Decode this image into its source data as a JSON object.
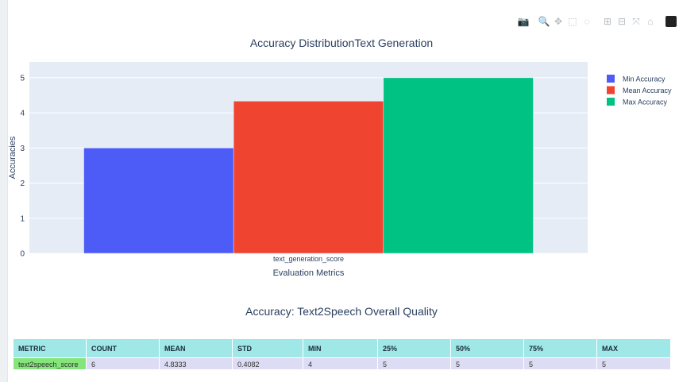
{
  "modebar": {
    "buttons": [
      {
        "name": "camera-icon",
        "glyph": "📷"
      },
      {
        "name": "zoom-icon",
        "glyph": "🔍"
      },
      {
        "name": "pan-icon",
        "glyph": "✥"
      },
      {
        "name": "box-select-icon",
        "glyph": "⬚"
      },
      {
        "name": "lasso-select-icon",
        "glyph": "◌"
      },
      {
        "name": "zoom-in-icon",
        "glyph": "⊞"
      },
      {
        "name": "zoom-out-icon",
        "glyph": "⊟"
      },
      {
        "name": "autoscale-icon",
        "glyph": "⤧"
      },
      {
        "name": "reset-axes-icon",
        "glyph": "⌂"
      },
      {
        "name": "plotly-logo-icon",
        "glyph": "▮"
      }
    ]
  },
  "chart_data": {
    "type": "bar",
    "title": "Accuracy DistributionText Generation",
    "xlabel": "Evaluation Metrics",
    "ylabel": "Accuracies",
    "categories": [
      "text_generation_score"
    ],
    "ylim": [
      0,
      5.45
    ],
    "yticks": [
      0,
      1,
      2,
      3,
      4,
      5
    ],
    "grid": true,
    "legend_position": "top-right",
    "series": [
      {
        "name": "Min Accuracy",
        "values": [
          3
        ],
        "color": "#4e5cf7"
      },
      {
        "name": "Mean Accuracy",
        "values": [
          4.3333
        ],
        "color": "#ee4430"
      },
      {
        "name": "Max Accuracy",
        "values": [
          5
        ],
        "color": "#00c383"
      }
    ]
  },
  "table": {
    "title": "Accuracy: Text2Speech Overall Quality",
    "headers": [
      "METRIC",
      "COUNT",
      "MEAN",
      "STD",
      "MIN",
      "25%",
      "50%",
      "75%",
      "MAX"
    ],
    "rows": [
      [
        "text2speech_score",
        "6",
        "4.8333",
        "0.4082",
        "4",
        "5",
        "5",
        "5",
        "5"
      ]
    ]
  }
}
